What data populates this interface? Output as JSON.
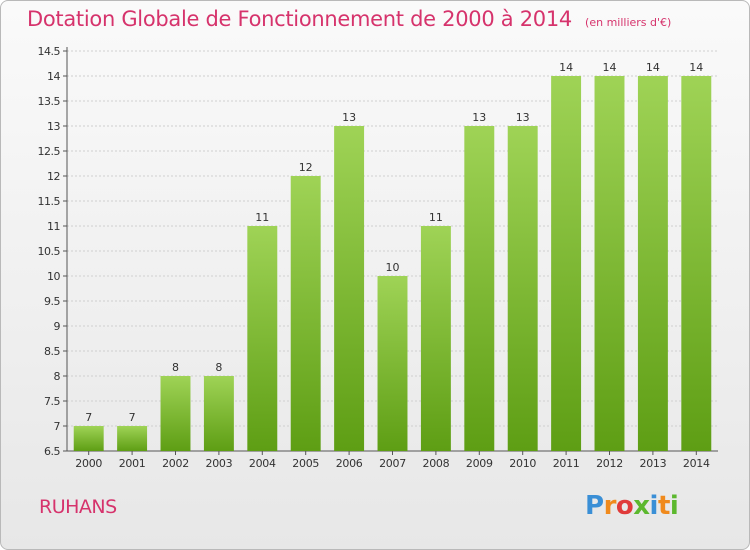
{
  "header": {
    "title": "Dotation Globale de Fonctionnement de 2000 à 2014",
    "unit": "(en milliers d'€)"
  },
  "footer": {
    "commune": "RUHANS",
    "logo_text": "Proxiti"
  },
  "colors": {
    "title": "#d6336c",
    "bar_top": "#9fd356",
    "bar_bottom": "#5e9e14",
    "grid": "#cccccc",
    "axis_text": "#333333"
  },
  "chart_data": {
    "type": "bar",
    "title": "Dotation Globale de Fonctionnement de 2000 à 2014",
    "subtitle": "(en milliers d'€)",
    "categories": [
      "2000",
      "2001",
      "2002",
      "2003",
      "2004",
      "2005",
      "2006",
      "2007",
      "2008",
      "2009",
      "2010",
      "2011",
      "2012",
      "2013",
      "2014"
    ],
    "values": [
      7,
      7,
      8,
      8,
      11,
      12,
      13,
      10,
      11,
      13,
      13,
      14,
      14,
      14,
      14
    ],
    "data_labels": [
      "7",
      "7",
      "8",
      "8",
      "11",
      "12",
      "13",
      "10",
      "11",
      "13",
      "13",
      "14",
      "14",
      "14",
      "14"
    ],
    "y_ticks": [
      "6.5",
      "7",
      "7.5",
      "8",
      "8.5",
      "9",
      "9.5",
      "10",
      "10.5",
      "11",
      "11.5",
      "12",
      "12.5",
      "13",
      "13.5",
      "14",
      "14.5"
    ],
    "ylim": [
      6.5,
      14.5
    ],
    "grid": true,
    "legend": "none"
  }
}
